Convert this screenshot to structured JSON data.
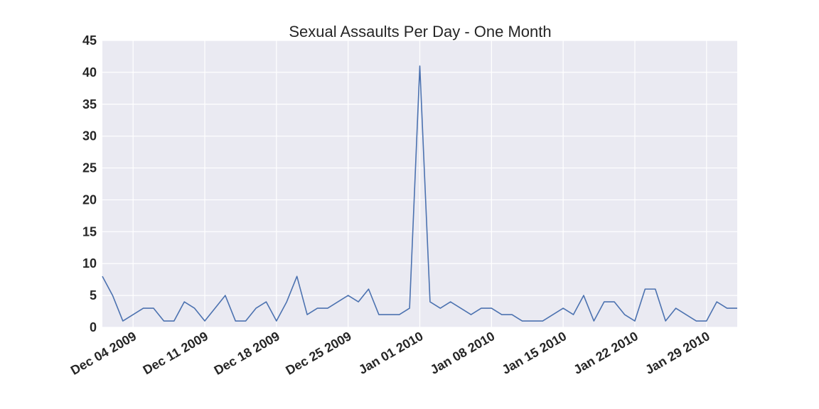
{
  "chart_data": {
    "type": "line",
    "title": "Sexual Assaults Per Day - One Month",
    "xlabel": "",
    "ylabel": "",
    "ylim": [
      0,
      45
    ],
    "yticks": [
      0,
      5,
      10,
      15,
      20,
      25,
      30,
      35,
      40,
      45
    ],
    "xlim": [
      "2009-12-01",
      "2010-02-01"
    ],
    "xticks": [
      {
        "date": "2009-12-04",
        "label": "Dec 04 2009"
      },
      {
        "date": "2009-12-11",
        "label": "Dec 11 2009"
      },
      {
        "date": "2009-12-18",
        "label": "Dec 18 2009"
      },
      {
        "date": "2009-12-25",
        "label": "Dec 25 2009"
      },
      {
        "date": "2010-01-01",
        "label": "Jan 01 2010"
      },
      {
        "date": "2010-01-08",
        "label": "Jan 08 2010"
      },
      {
        "date": "2010-01-15",
        "label": "Jan 15 2010"
      },
      {
        "date": "2010-01-22",
        "label": "Jan 22 2010"
      },
      {
        "date": "2010-01-29",
        "label": "Jan 29 2010"
      }
    ],
    "grid": true,
    "colors": {
      "line": "#4c72b0",
      "plot_bg": "#eaeaf2",
      "grid": "#ffffff"
    },
    "series": [
      {
        "x": [
          "2009-12-01",
          "2009-12-02",
          "2009-12-03",
          "2009-12-04",
          "2009-12-05",
          "2009-12-06",
          "2009-12-07",
          "2009-12-08",
          "2009-12-09",
          "2009-12-10",
          "2009-12-11",
          "2009-12-12",
          "2009-12-13",
          "2009-12-14",
          "2009-12-15",
          "2009-12-16",
          "2009-12-17",
          "2009-12-18",
          "2009-12-19",
          "2009-12-20",
          "2009-12-21",
          "2009-12-22",
          "2009-12-23",
          "2009-12-24",
          "2009-12-25",
          "2009-12-26",
          "2009-12-27",
          "2009-12-28",
          "2009-12-29",
          "2009-12-30",
          "2009-12-31",
          "2010-01-01",
          "2010-01-02",
          "2010-01-03",
          "2010-01-04",
          "2010-01-05",
          "2010-01-06",
          "2010-01-07",
          "2010-01-08",
          "2010-01-09",
          "2010-01-10",
          "2010-01-11",
          "2010-01-12",
          "2010-01-13",
          "2010-01-14",
          "2010-01-15",
          "2010-01-16",
          "2010-01-17",
          "2010-01-18",
          "2010-01-19",
          "2010-01-20",
          "2010-01-21",
          "2010-01-22",
          "2010-01-23",
          "2010-01-24",
          "2010-01-25",
          "2010-01-26",
          "2010-01-27",
          "2010-01-28",
          "2010-01-29",
          "2010-01-30",
          "2010-01-31",
          "2010-02-01"
        ],
        "y": [
          8,
          5,
          1,
          2,
          3,
          3,
          1,
          1,
          4,
          3,
          1,
          3,
          5,
          1,
          1,
          3,
          4,
          1,
          4,
          8,
          2,
          3,
          3,
          4,
          5,
          4,
          6,
          2,
          2,
          2,
          3,
          41,
          4,
          3,
          4,
          3,
          2,
          3,
          3,
          2,
          2,
          1,
          1,
          1,
          2,
          3,
          2,
          5,
          1,
          4,
          4,
          2,
          1,
          6,
          6,
          1,
          3,
          2,
          1,
          1,
          4,
          3,
          3
        ]
      }
    ]
  }
}
